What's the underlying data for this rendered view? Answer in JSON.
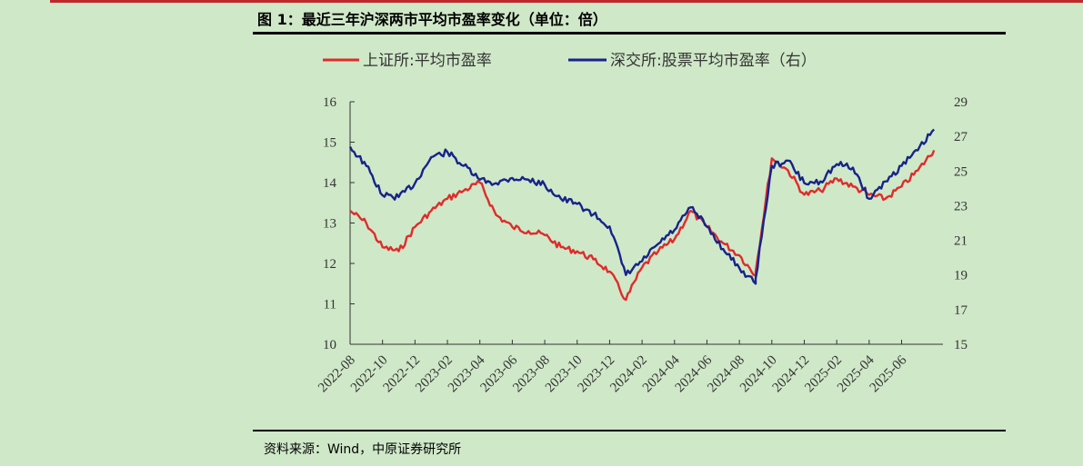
{
  "figure": {
    "title": "图 1：最近三年沪深两市平均市盈率变化（单位：倍）",
    "source": "资料来源：Wind，中原证券研究所"
  },
  "colors": {
    "sse": "#e02b2b",
    "szse": "#17238a",
    "background": "#cfe8c8"
  },
  "chart_data": {
    "type": "line",
    "title": "",
    "xlabel": "",
    "ylabel": "",
    "legend_position": "top-center",
    "grid": false,
    "categories": [
      "2022-08",
      "2022-10",
      "2022-12",
      "2023-02",
      "2023-04",
      "2023-06",
      "2023-08",
      "2023-10",
      "2023-12",
      "2024-02",
      "2024-04",
      "2024-06",
      "2024-08",
      "2024-10",
      "2024-12",
      "2025-02",
      "2025-04",
      "2025-06"
    ],
    "y_left": {
      "ticks": [
        "10",
        "11",
        "12",
        "13",
        "14",
        "15",
        "16"
      ],
      "ylim": [
        10,
        16
      ]
    },
    "y_right": {
      "ticks": [
        "15",
        "17",
        "19",
        "21",
        "23",
        "25",
        "27",
        "29"
      ],
      "ylim": [
        15,
        29
      ]
    },
    "series": [
      {
        "name": "上证所:平均市盈率",
        "axis": "left",
        "x": [
          "2022-08",
          "2022-09",
          "2022-10",
          "2022-11",
          "2022-12",
          "2023-01",
          "2023-02",
          "2023-03",
          "2023-04",
          "2023-05",
          "2023-06",
          "2023-07",
          "2023-08",
          "2023-09",
          "2023-10",
          "2023-11",
          "2023-12",
          "2024-01",
          "2024-02",
          "2024-03",
          "2024-04",
          "2024-05",
          "2024-06",
          "2024-07",
          "2024-08",
          "2024-09",
          "2024-09",
          "2024-10",
          "2024-11",
          "2024-12",
          "2025-01",
          "2025-02",
          "2025-03",
          "2025-04",
          "2025-05",
          "2025-06",
          "2025-07",
          "2025-08"
        ],
        "values": [
          13.3,
          13.0,
          12.4,
          12.3,
          12.9,
          13.3,
          13.6,
          13.8,
          14.0,
          13.2,
          12.9,
          12.8,
          12.7,
          12.4,
          12.3,
          12.1,
          11.8,
          11.1,
          11.9,
          12.3,
          12.6,
          13.3,
          12.9,
          12.5,
          12.2,
          11.7,
          11.8,
          14.6,
          14.3,
          13.7,
          13.8,
          14.1,
          13.9,
          13.7,
          13.6,
          13.9,
          14.3,
          14.8
        ]
      },
      {
        "name": "深交所:股票平均市盈率（右）",
        "axis": "right",
        "x": [
          "2022-08",
          "2022-09",
          "2022-10",
          "2022-11",
          "2022-12",
          "2023-01",
          "2023-02",
          "2023-03",
          "2023-04",
          "2023-05",
          "2023-06",
          "2023-07",
          "2023-08",
          "2023-09",
          "2023-10",
          "2023-11",
          "2023-12",
          "2024-01",
          "2024-02",
          "2024-03",
          "2024-04",
          "2024-05",
          "2024-06",
          "2024-07",
          "2024-08",
          "2024-09",
          "2024-09",
          "2024-10",
          "2024-11",
          "2024-12",
          "2025-01",
          "2025-02",
          "2025-03",
          "2025-04",
          "2025-05",
          "2025-06",
          "2025-07",
          "2025-08"
        ],
        "values": [
          26.4,
          25.3,
          23.6,
          23.5,
          24.3,
          25.8,
          26.1,
          25.3,
          24.5,
          24.3,
          24.6,
          24.5,
          24.2,
          23.4,
          23.1,
          22.5,
          21.8,
          19.0,
          19.8,
          20.8,
          21.6,
          22.9,
          21.8,
          20.5,
          19.4,
          18.5,
          18.8,
          25.3,
          25.6,
          24.3,
          24.4,
          25.4,
          25.2,
          23.4,
          24.4,
          25.3,
          26.2,
          27.4
        ]
      }
    ]
  }
}
